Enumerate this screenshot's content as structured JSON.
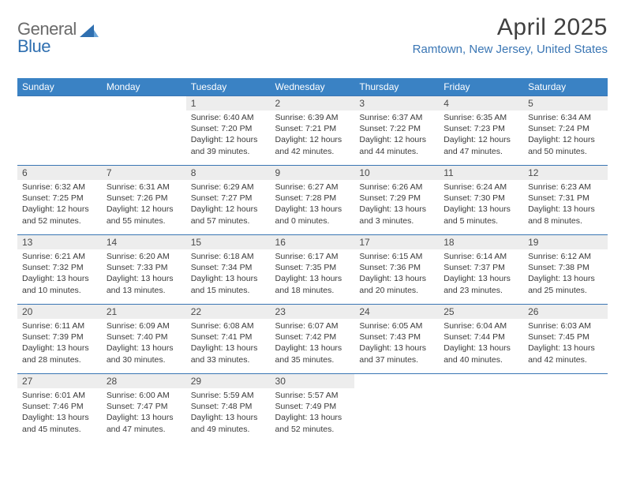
{
  "logo": {
    "text1": "General",
    "text2": "Blue"
  },
  "title": "April 2025",
  "location": "Ramtown, New Jersey, United States",
  "colors": {
    "header_bg": "#3a82c4",
    "header_text": "#ffffff",
    "daynum_bg": "#ededed",
    "border": "#3a76b4",
    "logo_gray": "#6a6a6a",
    "logo_blue": "#2f6fb0"
  },
  "day_headers": [
    "Sunday",
    "Monday",
    "Tuesday",
    "Wednesday",
    "Thursday",
    "Friday",
    "Saturday"
  ],
  "weeks": [
    [
      null,
      null,
      {
        "n": "1",
        "sr": "6:40 AM",
        "ss": "7:20 PM",
        "dl": "12 hours and 39 minutes."
      },
      {
        "n": "2",
        "sr": "6:39 AM",
        "ss": "7:21 PM",
        "dl": "12 hours and 42 minutes."
      },
      {
        "n": "3",
        "sr": "6:37 AM",
        "ss": "7:22 PM",
        "dl": "12 hours and 44 minutes."
      },
      {
        "n": "4",
        "sr": "6:35 AM",
        "ss": "7:23 PM",
        "dl": "12 hours and 47 minutes."
      },
      {
        "n": "5",
        "sr": "6:34 AM",
        "ss": "7:24 PM",
        "dl": "12 hours and 50 minutes."
      }
    ],
    [
      {
        "n": "6",
        "sr": "6:32 AM",
        "ss": "7:25 PM",
        "dl": "12 hours and 52 minutes."
      },
      {
        "n": "7",
        "sr": "6:31 AM",
        "ss": "7:26 PM",
        "dl": "12 hours and 55 minutes."
      },
      {
        "n": "8",
        "sr": "6:29 AM",
        "ss": "7:27 PM",
        "dl": "12 hours and 57 minutes."
      },
      {
        "n": "9",
        "sr": "6:27 AM",
        "ss": "7:28 PM",
        "dl": "13 hours and 0 minutes."
      },
      {
        "n": "10",
        "sr": "6:26 AM",
        "ss": "7:29 PM",
        "dl": "13 hours and 3 minutes."
      },
      {
        "n": "11",
        "sr": "6:24 AM",
        "ss": "7:30 PM",
        "dl": "13 hours and 5 minutes."
      },
      {
        "n": "12",
        "sr": "6:23 AM",
        "ss": "7:31 PM",
        "dl": "13 hours and 8 minutes."
      }
    ],
    [
      {
        "n": "13",
        "sr": "6:21 AM",
        "ss": "7:32 PM",
        "dl": "13 hours and 10 minutes."
      },
      {
        "n": "14",
        "sr": "6:20 AM",
        "ss": "7:33 PM",
        "dl": "13 hours and 13 minutes."
      },
      {
        "n": "15",
        "sr": "6:18 AM",
        "ss": "7:34 PM",
        "dl": "13 hours and 15 minutes."
      },
      {
        "n": "16",
        "sr": "6:17 AM",
        "ss": "7:35 PM",
        "dl": "13 hours and 18 minutes."
      },
      {
        "n": "17",
        "sr": "6:15 AM",
        "ss": "7:36 PM",
        "dl": "13 hours and 20 minutes."
      },
      {
        "n": "18",
        "sr": "6:14 AM",
        "ss": "7:37 PM",
        "dl": "13 hours and 23 minutes."
      },
      {
        "n": "19",
        "sr": "6:12 AM",
        "ss": "7:38 PM",
        "dl": "13 hours and 25 minutes."
      }
    ],
    [
      {
        "n": "20",
        "sr": "6:11 AM",
        "ss": "7:39 PM",
        "dl": "13 hours and 28 minutes."
      },
      {
        "n": "21",
        "sr": "6:09 AM",
        "ss": "7:40 PM",
        "dl": "13 hours and 30 minutes."
      },
      {
        "n": "22",
        "sr": "6:08 AM",
        "ss": "7:41 PM",
        "dl": "13 hours and 33 minutes."
      },
      {
        "n": "23",
        "sr": "6:07 AM",
        "ss": "7:42 PM",
        "dl": "13 hours and 35 minutes."
      },
      {
        "n": "24",
        "sr": "6:05 AM",
        "ss": "7:43 PM",
        "dl": "13 hours and 37 minutes."
      },
      {
        "n": "25",
        "sr": "6:04 AM",
        "ss": "7:44 PM",
        "dl": "13 hours and 40 minutes."
      },
      {
        "n": "26",
        "sr": "6:03 AM",
        "ss": "7:45 PM",
        "dl": "13 hours and 42 minutes."
      }
    ],
    [
      {
        "n": "27",
        "sr": "6:01 AM",
        "ss": "7:46 PM",
        "dl": "13 hours and 45 minutes."
      },
      {
        "n": "28",
        "sr": "6:00 AM",
        "ss": "7:47 PM",
        "dl": "13 hours and 47 minutes."
      },
      {
        "n": "29",
        "sr": "5:59 AM",
        "ss": "7:48 PM",
        "dl": "13 hours and 49 minutes."
      },
      {
        "n": "30",
        "sr": "5:57 AM",
        "ss": "7:49 PM",
        "dl": "13 hours and 52 minutes."
      },
      null,
      null,
      null
    ]
  ],
  "labels": {
    "sunrise": "Sunrise:",
    "sunset": "Sunset:",
    "daylight": "Daylight:"
  }
}
